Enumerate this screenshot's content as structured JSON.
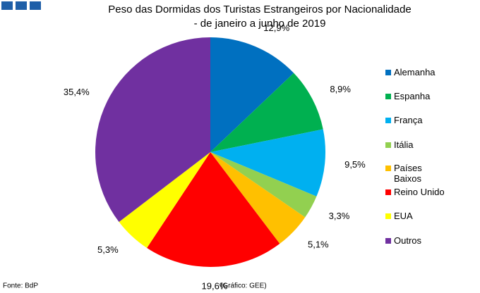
{
  "chart_data": {
    "type": "pie",
    "title": "Peso das Dormidas dos Turistas Estrangeiros por Nacionalidade",
    "subtitle": "- de janeiro a junho de 2019",
    "categories": [
      "Alemanha",
      "Espanha",
      "França",
      "Itália",
      "Países Baixos",
      "Reino Unido",
      "EUA",
      "Outros"
    ],
    "values": [
      12.9,
      8.9,
      9.5,
      3.3,
      5.1,
      19.6,
      5.3,
      35.4
    ],
    "value_labels": [
      "12,9%",
      "8,9%",
      "9,5%",
      "3,3%",
      "5,1%",
      "19,6%",
      "5,3%",
      "35,4%"
    ],
    "colors": [
      "#0070c0",
      "#00b050",
      "#00b0f0",
      "#92d050",
      "#ffc000",
      "#ff0000",
      "#ffff00",
      "#7030a0"
    ],
    "legend": "right",
    "source": "Fonte: BdP",
    "credit": "(Gráfico: GEE)"
  }
}
